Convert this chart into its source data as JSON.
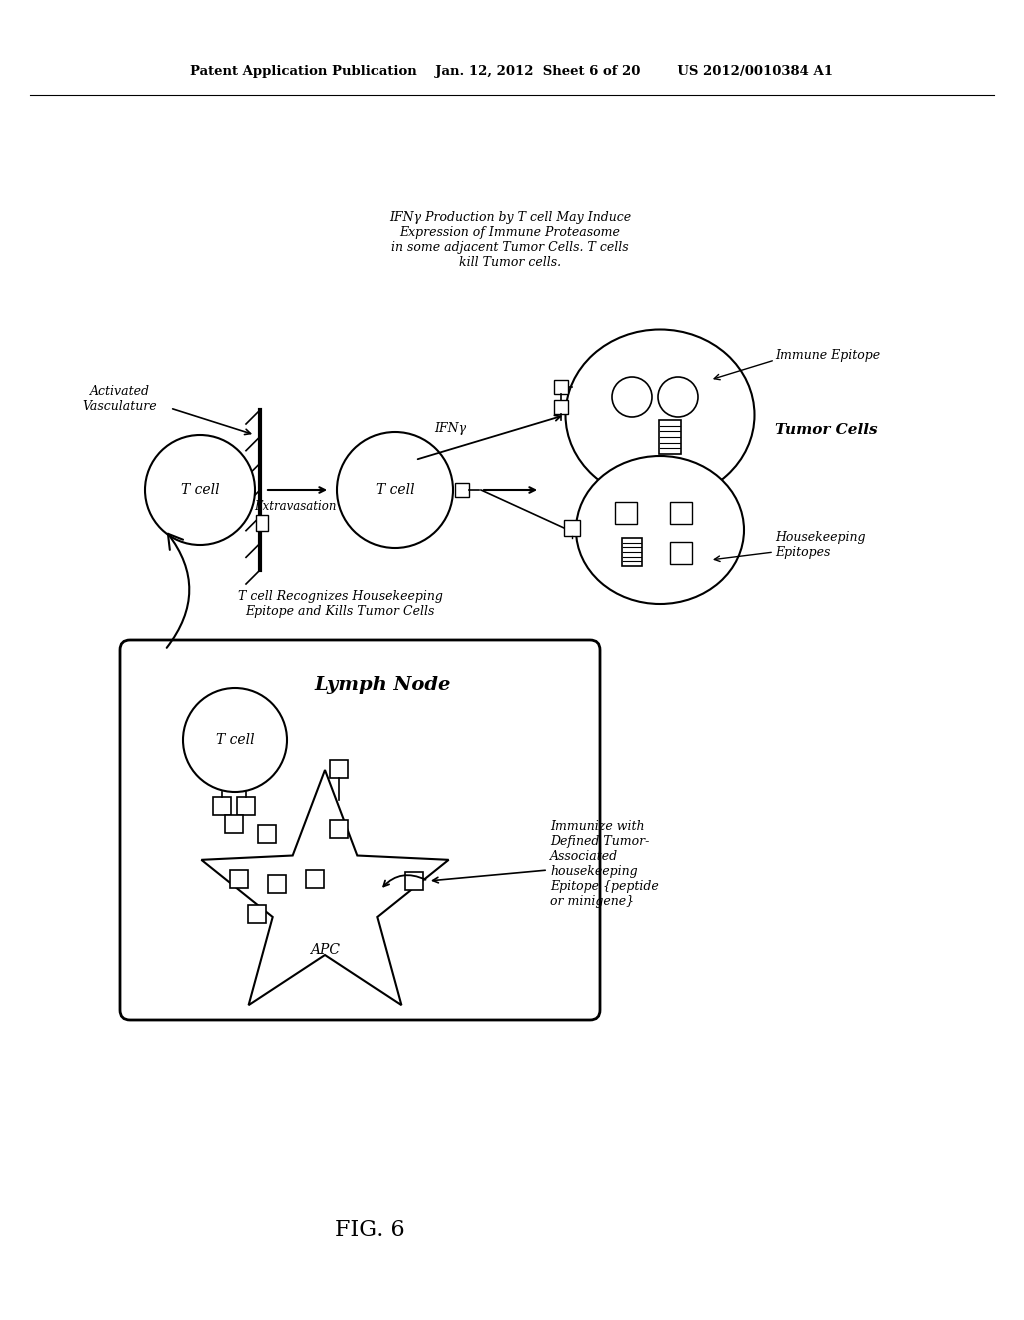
{
  "bg_color": "#ffffff",
  "header_text": "Patent Application Publication    Jan. 12, 2012  Sheet 6 of 20        US 2012/0010384 A1",
  "fig_label": "FIG. 6",
  "annotation_ifny_title": "IFNγ Production by T cell May Induce\nExpression of Immune Proteasome\nin some adjacent Tumor Cells. T cells\nkill Tumor cells.",
  "label_immune_epitope": "Immune Epitope",
  "label_tumor_cells": "Tumor Cells",
  "label_housekeeping_epitopes": "Housekeeping\nEpitopes",
  "label_activated_vasculature": "Activated\nVasculature",
  "label_extravasation": "Extravasation",
  "label_tcell_recognizes": "T cell Recognizes Housekeeping\nEpitope and Kills Tumor Cells",
  "label_lymph_node": "Lymph Node",
  "label_apc": "APC",
  "label_immunize": "Immunize with\nDefined Tumor-\nAssociated\nhousekeeping\nEpitope {peptide\nor minigene}",
  "label_ifny": "IFNγ"
}
